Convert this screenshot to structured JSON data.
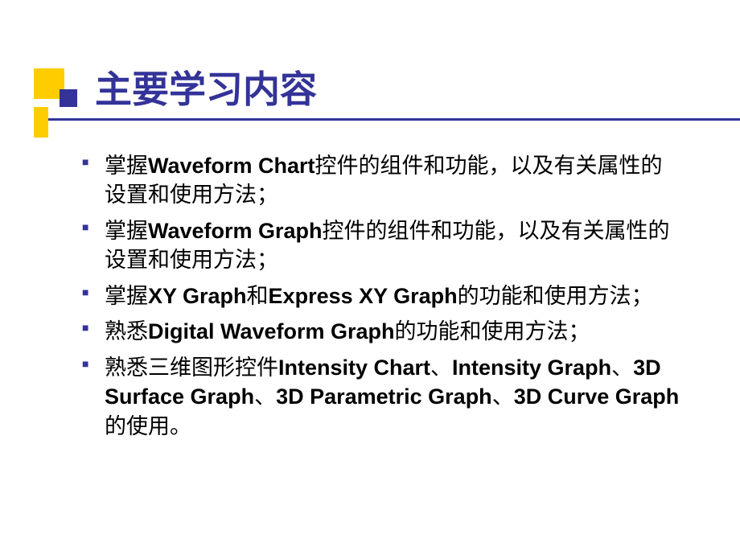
{
  "slide": {
    "title": "主要学习内容",
    "title_color": "#333399",
    "title_fontsize": 46,
    "accent_yellow": "#ffcc00",
    "accent_blue": "#333399",
    "background_color": "#ffffff",
    "body_fontsize": 27,
    "body_color": "#000000",
    "bullet_color": "#333399",
    "bullets": [
      {
        "parts": [
          {
            "text": "掌握",
            "bold": false,
            "cn": true
          },
          {
            "text": "Waveform Chart",
            "bold": true,
            "cn": false
          },
          {
            "text": "控件的组件和功能，以及有关属性的设置和使用方法；",
            "bold": false,
            "cn": true
          }
        ]
      },
      {
        "parts": [
          {
            "text": "掌握",
            "bold": false,
            "cn": true
          },
          {
            "text": "Waveform Graph",
            "bold": true,
            "cn": false
          },
          {
            "text": "控件的组件和功能，以及有关属性的设置和使用方法；",
            "bold": false,
            "cn": true
          }
        ]
      },
      {
        "parts": [
          {
            "text": "掌握",
            "bold": false,
            "cn": true
          },
          {
            "text": "XY Graph",
            "bold": true,
            "cn": false
          },
          {
            "text": "和",
            "bold": false,
            "cn": true
          },
          {
            "text": "Express XY Graph",
            "bold": true,
            "cn": false
          },
          {
            "text": "的功能和使用方法；",
            "bold": false,
            "cn": true
          }
        ]
      },
      {
        "parts": [
          {
            "text": "熟悉",
            "bold": false,
            "cn": true
          },
          {
            "text": "Digital Waveform Graph",
            "bold": true,
            "cn": false
          },
          {
            "text": "的功能和使用方法；",
            "bold": false,
            "cn": true
          }
        ]
      },
      {
        "parts": [
          {
            "text": "熟悉三维图形控件",
            "bold": false,
            "cn": true
          },
          {
            "text": "Intensity Chart",
            "bold": true,
            "cn": false
          },
          {
            "text": "、",
            "bold": false,
            "cn": true
          },
          {
            "text": "Intensity Graph",
            "bold": true,
            "cn": false
          },
          {
            "text": "、",
            "bold": false,
            "cn": true
          },
          {
            "text": "3D Surface Graph",
            "bold": true,
            "cn": false
          },
          {
            "text": "、",
            "bold": false,
            "cn": true
          },
          {
            "text": "3D Parametric Graph",
            "bold": true,
            "cn": false
          },
          {
            "text": "、",
            "bold": false,
            "cn": true
          },
          {
            "text": "3D Curve Graph",
            "bold": true,
            "cn": false
          },
          {
            "text": "的使用。",
            "bold": false,
            "cn": true
          }
        ]
      }
    ]
  }
}
